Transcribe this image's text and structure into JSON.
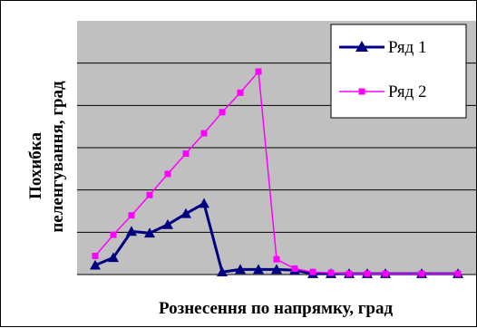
{
  "chart_data": {
    "type": "line",
    "title": "",
    "xlabel": "Рознесення по напрямку, град",
    "ylabel_lines": [
      "Похибка",
      "пеленгування, град"
    ],
    "x": [
      1,
      2,
      3,
      4,
      5,
      6,
      7,
      8,
      9,
      10,
      11,
      12,
      13,
      14,
      15,
      16,
      17,
      18,
      19,
      20,
      21,
      22
    ],
    "series": [
      {
        "name": "Ряд 1",
        "color": "#000080",
        "marker": "triangle",
        "x": [
          1,
          2,
          3,
          4,
          5,
          6,
          7,
          8,
          9,
          10,
          11,
          12,
          13,
          14,
          15,
          16,
          17,
          19,
          21
        ],
        "values": [
          1.1,
          2.0,
          5.1,
          4.9,
          5.9,
          7.2,
          8.4,
          0.3,
          0.6,
          0.6,
          0.6,
          0.5,
          0.1,
          0.1,
          0.1,
          0.1,
          0.1,
          0.1,
          0.1
        ]
      },
      {
        "name": "Ряд 2",
        "color": "#ff00ff",
        "marker": "square",
        "x": [
          1,
          2,
          3,
          4,
          5,
          6,
          7,
          8,
          9,
          10,
          11,
          12,
          13,
          14,
          15,
          16,
          17,
          19,
          21
        ],
        "values": [
          2.2,
          4.7,
          7.0,
          9.4,
          11.9,
          14.3,
          16.7,
          19.2,
          21.5,
          24.0,
          1.8,
          0.7,
          0.3,
          0.2,
          0.1,
          0.1,
          0.1,
          0.1,
          0.1
        ]
      }
    ],
    "ylim": [
      0,
      30
    ],
    "y_gridlines": [
      0,
      5,
      10,
      15,
      20,
      25
    ],
    "grid": true,
    "legend_position": "top-right",
    "plot_background": "#c0c0c0"
  }
}
